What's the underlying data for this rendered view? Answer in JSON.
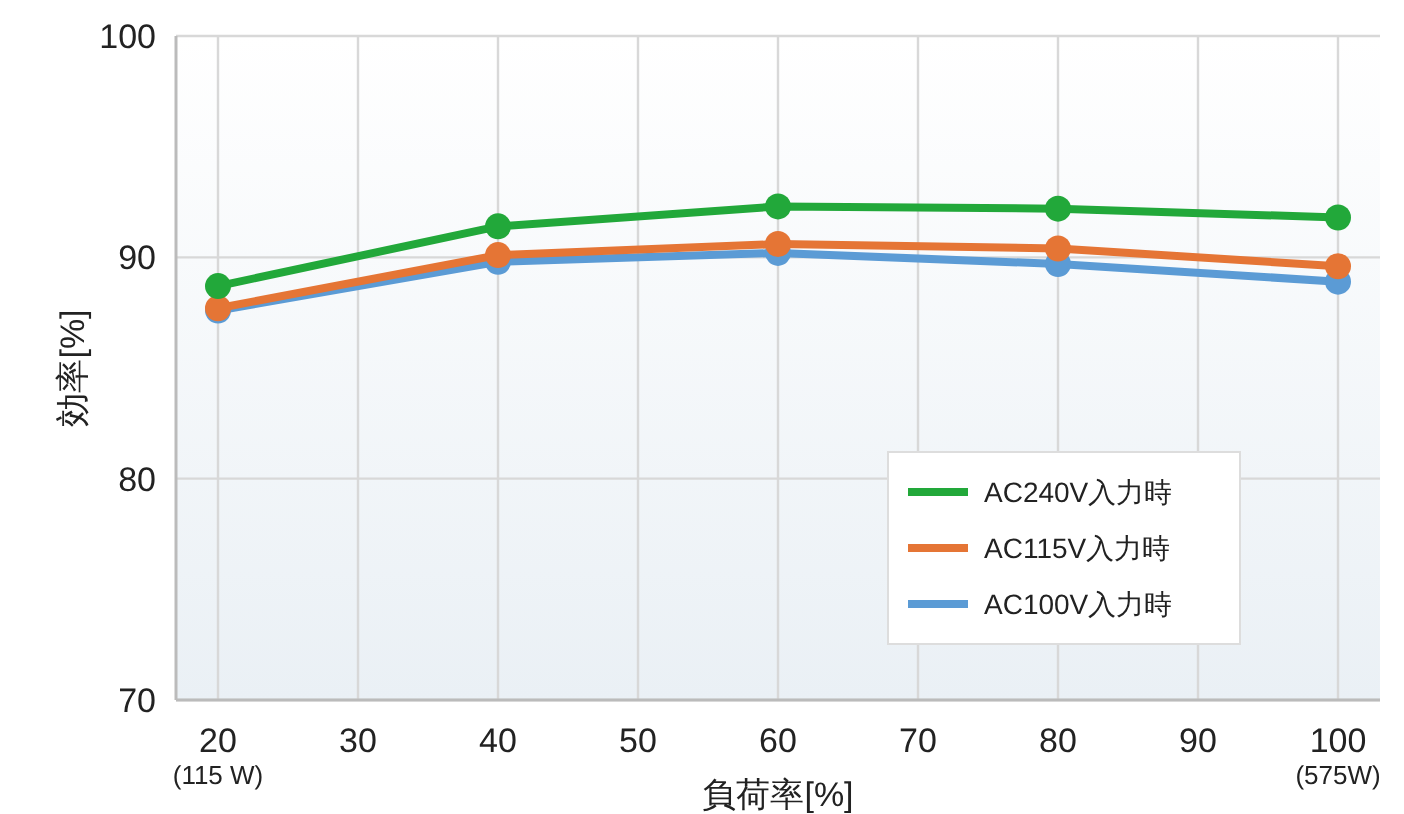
{
  "chart_data": {
    "type": "line",
    "xlabel": "負荷率[%]",
    "ylabel": "効率[%]",
    "x": [
      20,
      40,
      60,
      80,
      100
    ],
    "series": [
      {
        "name": "AC240V入力時",
        "color": "#22a83a",
        "values": [
          88.7,
          91.4,
          92.3,
          92.2,
          91.8
        ]
      },
      {
        "name": "AC115V入力時",
        "color": "#e57535",
        "values": [
          87.7,
          90.1,
          90.6,
          90.4,
          89.6
        ]
      },
      {
        "name": "AC100V入力時",
        "color": "#5b9bd5",
        "values": [
          87.6,
          89.8,
          90.2,
          89.7,
          88.9
        ]
      }
    ],
    "xlim": [
      17,
      103
    ],
    "ylim": [
      70,
      100
    ],
    "xticks": [
      {
        "value": 20,
        "label": "20\n(115 W)"
      },
      30,
      40,
      50,
      60,
      70,
      80,
      90,
      {
        "value": 100,
        "label": "100\n(575W)"
      }
    ],
    "yticks": [
      70,
      80,
      90,
      100
    ],
    "grid": true,
    "legend": "bottom right",
    "marker": "circle",
    "line_style": "solid"
  }
}
